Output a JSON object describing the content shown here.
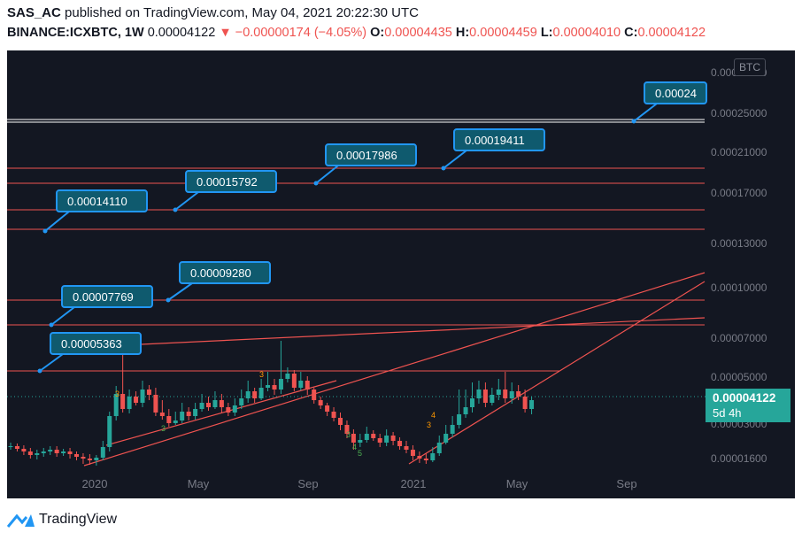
{
  "header": {
    "author": "SAS_AC",
    "published_text": "published on TradingView.com, May 04, 2021 20:22:30 UTC",
    "symbol": "BINANCE:ICXBTC, 1W",
    "last": "0.00004122",
    "change": "▼ −0.00000174 (−4.05%)",
    "o_label": "O:",
    "o_value": "0.00004435",
    "h_label": "H:",
    "h_value": "0.00004459",
    "l_label": "L:",
    "l_value": "0.00004010",
    "c_label": "C:",
    "c_value": "0.00004122"
  },
  "price_tag": {
    "price": "0.00004122",
    "countdown": "5d 4h"
  },
  "currency_badge": "BTC",
  "footer": {
    "brand": "TradingView"
  },
  "colors": {
    "background": "#131722",
    "header_text": "#131722",
    "negative": "#ef5350",
    "up_candle": "#26a69a",
    "down_candle": "#ef5350",
    "level_line": "#ef5350",
    "callout_fill": "#0f5a6e",
    "callout_border": "#2196f3",
    "price_tag": "#26a69a",
    "axis_text": "#787b86",
    "marker_green": "#4caf50",
    "marker_orange": "#ff9800"
  },
  "chart_data": {
    "type": "candlestick",
    "y_ticks": [
      "0.00030000",
      "0.00025000",
      "0.00021000",
      "0.00017000",
      "0.00013000",
      "0.00010000",
      "0.00007000",
      "0.00005000",
      "0.00003000",
      "0.00001600"
    ],
    "x_ticks": [
      "2020",
      "May",
      "Sep",
      "2021",
      "May",
      "Sep"
    ],
    "horizontal_levels": [
      "0.00005363",
      "0.00007769",
      "0.00009280",
      "0.00014110",
      "0.00015792",
      "0.00017986",
      "0.00019411",
      "0.00024"
    ],
    "annotations": [
      "0.00005363",
      "0.00007769",
      "0.00009280",
      "0.00014110",
      "0.00015792",
      "0.00017986",
      "0.00019411",
      "0.00024"
    ],
    "markers": [
      "3",
      "3",
      "3",
      "3",
      "4",
      "5",
      "3",
      "4"
    ],
    "last_price": "0.00004122"
  }
}
